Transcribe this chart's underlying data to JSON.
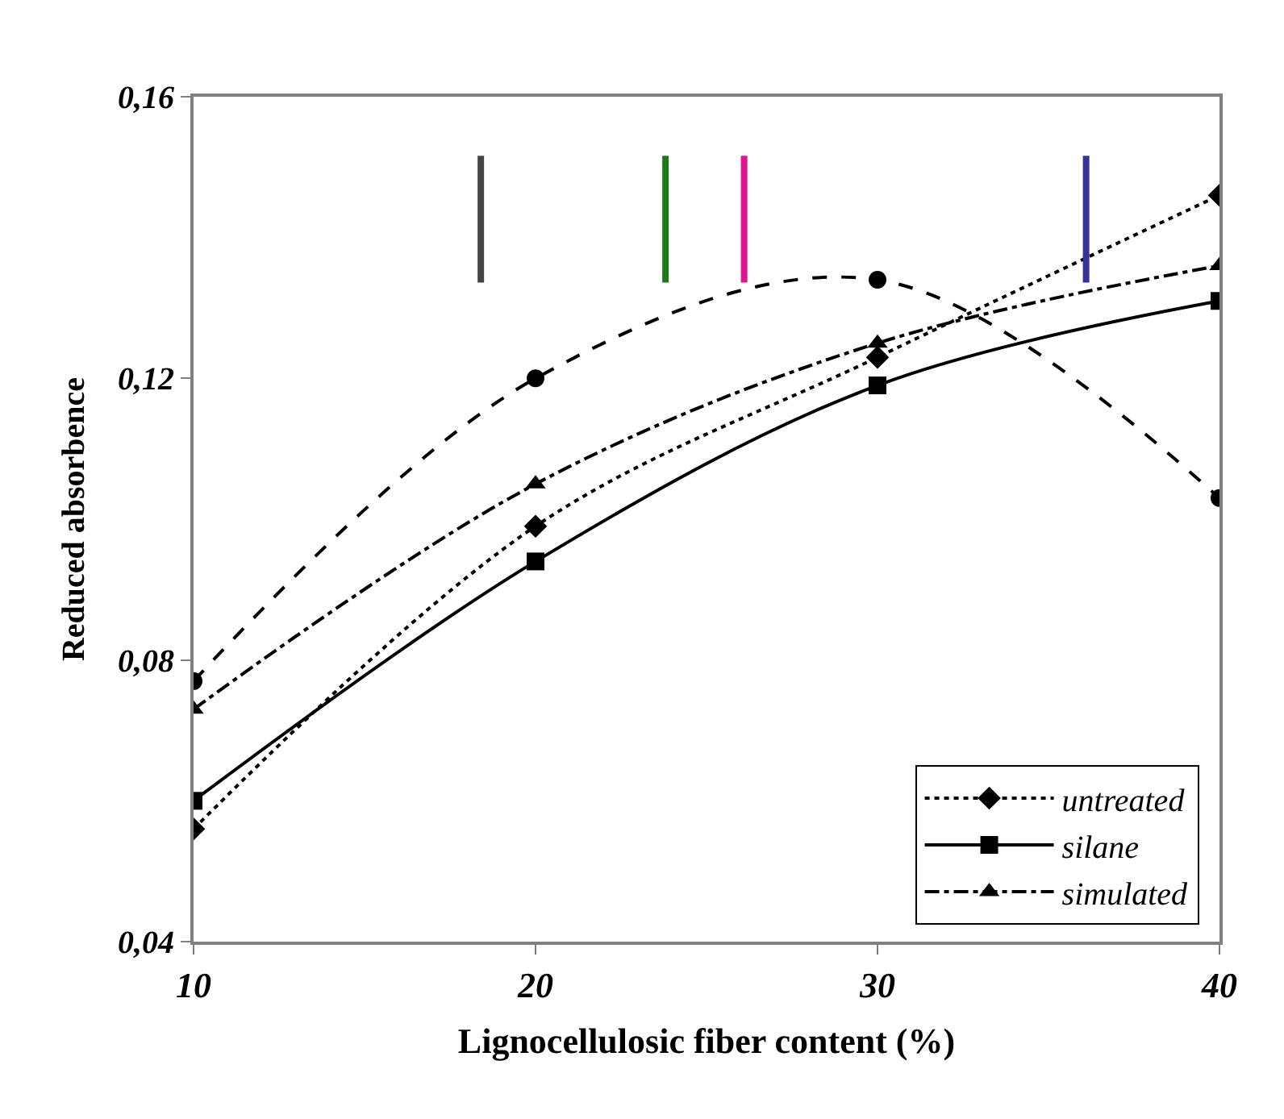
{
  "chart_data": {
    "type": "line",
    "xlabel": "Lignocellulosic fiber content (%)",
    "ylabel": "Reduced absorbence",
    "x": [
      10,
      20,
      30,
      40
    ],
    "series": [
      {
        "name": "untreated",
        "color": "#000000",
        "values": [
          0.056,
          0.099,
          0.123,
          0.146
        ],
        "marker": "diamond",
        "line_style": "dotted"
      },
      {
        "name": "silane",
        "color": "#000000",
        "values": [
          0.06,
          0.094,
          0.119,
          0.131
        ],
        "marker": "square",
        "line_style": "solid"
      },
      {
        "name": null,
        "color": "#000000",
        "values": [
          0.077,
          0.12,
          0.134,
          0.103
        ],
        "marker": "circle",
        "line_style": "dashed"
      },
      {
        "name": "simulated",
        "color": "#000000",
        "values": [
          0.073,
          0.105,
          0.125,
          0.136
        ],
        "marker": "triangle",
        "line_style": "dashdot"
      }
    ],
    "xlim": [
      10,
      40
    ],
    "xticks": [
      10,
      20,
      30,
      40
    ],
    "ylim": [
      0.04,
      0.16
    ],
    "yticks": [
      {
        "value": 0.04,
        "label": "0,04"
      },
      {
        "value": 0.08,
        "label": "0,08"
      },
      {
        "value": 0.12,
        "label": "0,12"
      },
      {
        "value": 0.16,
        "label": "0,16"
      }
    ],
    "legend": "bottom right",
    "ref_lines": [
      {
        "axis": "x",
        "value": 26.1,
        "color": "#e0148c"
      },
      {
        "axis": "x",
        "value": 36.1,
        "color": "#333399"
      },
      {
        "axis": "x",
        "value": 23.8,
        "color": "#1a7a1a"
      },
      {
        "axis": "x",
        "value": 18.4,
        "color": "#444444"
      }
    ]
  }
}
